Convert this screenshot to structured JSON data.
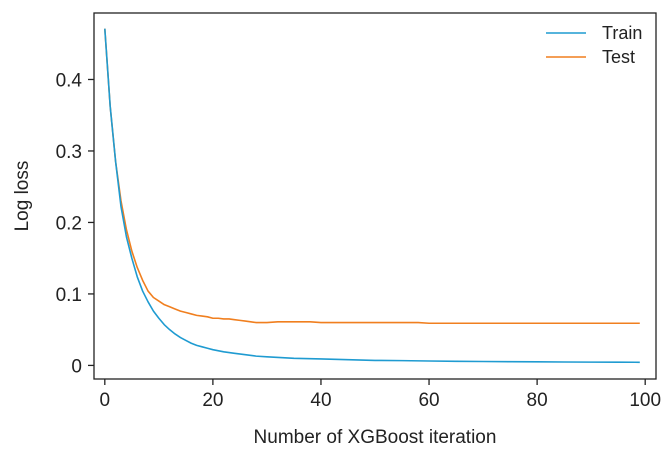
{
  "chart_data": {
    "type": "line",
    "title": "",
    "xlabel": "Number of XGBoost iteration",
    "ylabel": "Log loss",
    "xlim": [
      -2,
      102
    ],
    "ylim": [
      -0.019,
      0.493
    ],
    "xticks": [
      0,
      20,
      40,
      60,
      80,
      100
    ],
    "yticks": [
      0,
      0.1,
      0.2,
      0.3,
      0.4
    ],
    "xtick_labels": [
      "0",
      "20",
      "40",
      "60",
      "80",
      "100"
    ],
    "ytick_labels": [
      "0",
      "0.1",
      "0.2",
      "0.3",
      "0.4"
    ],
    "grid": false,
    "legend_position": "top-right",
    "series": [
      {
        "name": "Train",
        "color": "#1f9bd1",
        "x": [
          0,
          1,
          2,
          3,
          4,
          5,
          6,
          7,
          8,
          9,
          10,
          11,
          12,
          13,
          14,
          15,
          16,
          17,
          18,
          19,
          20,
          22,
          24,
          26,
          28,
          30,
          35,
          40,
          45,
          50,
          55,
          60,
          65,
          70,
          75,
          80,
          85,
          90,
          95,
          99
        ],
        "y": [
          0.471,
          0.362,
          0.285,
          0.222,
          0.18,
          0.15,
          0.124,
          0.104,
          0.089,
          0.076,
          0.066,
          0.057,
          0.05,
          0.044,
          0.039,
          0.035,
          0.031,
          0.028,
          0.026,
          0.024,
          0.022,
          0.019,
          0.017,
          0.015,
          0.013,
          0.012,
          0.01,
          0.009,
          0.008,
          0.007,
          0.0067,
          0.0062,
          0.0058,
          0.0055,
          0.0052,
          0.005,
          0.0048,
          0.0046,
          0.0045,
          0.0044
        ]
      },
      {
        "name": "Test",
        "color": "#f07f1f",
        "x": [
          0,
          1,
          2,
          3,
          4,
          5,
          6,
          7,
          8,
          9,
          10,
          11,
          12,
          13,
          14,
          15,
          16,
          17,
          18,
          19,
          20,
          21,
          22,
          23,
          24,
          25,
          26,
          27,
          28,
          29,
          30,
          32,
          34,
          36,
          38,
          40,
          42,
          44,
          46,
          48,
          50,
          52,
          54,
          56,
          58,
          60,
          65,
          70,
          75,
          80,
          85,
          90,
          95,
          99
        ],
        "y": [
          0.471,
          0.362,
          0.285,
          0.23,
          0.19,
          0.16,
          0.137,
          0.119,
          0.104,
          0.095,
          0.09,
          0.085,
          0.082,
          0.079,
          0.076,
          0.074,
          0.072,
          0.07,
          0.069,
          0.068,
          0.066,
          0.066,
          0.065,
          0.065,
          0.064,
          0.063,
          0.062,
          0.061,
          0.06,
          0.06,
          0.06,
          0.061,
          0.061,
          0.061,
          0.061,
          0.06,
          0.06,
          0.06,
          0.06,
          0.06,
          0.06,
          0.06,
          0.06,
          0.06,
          0.06,
          0.059,
          0.059,
          0.059,
          0.059,
          0.059,
          0.059,
          0.059,
          0.059,
          0.059
        ]
      }
    ]
  }
}
